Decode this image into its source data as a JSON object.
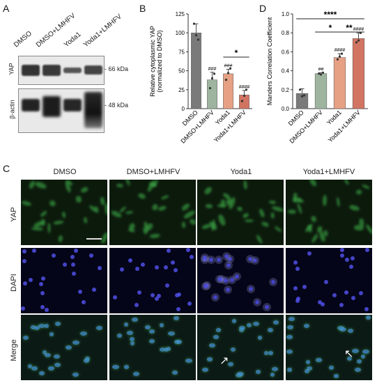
{
  "panel_labels": {
    "a": "A",
    "b": "B",
    "c": "C",
    "d": "D"
  },
  "western": {
    "lanes": [
      "DMSO",
      "DMSO+LMHFV",
      "Yoda1",
      "Yoda1+LMHFV"
    ],
    "rows": [
      {
        "protein": "YAP",
        "size": "- 66 kDa"
      },
      {
        "protein": "β-actin",
        "size": "- 48 kDa"
      }
    ]
  },
  "chart_data": [
    {
      "type": "bar",
      "panel": "B",
      "categories": [
        "DMSO",
        "DMSO+LMHFV",
        "Yoda1",
        "Yoda1+LMHFV"
      ],
      "values": [
        100,
        38,
        46,
        18
      ],
      "errors": [
        12,
        10,
        6,
        6
      ],
      "points": [
        [
          112,
          97,
          91
        ],
        [
          27,
          40,
          46
        ],
        [
          38,
          47,
          53
        ],
        [
          10,
          17,
          25
        ]
      ],
      "colors": [
        "#7a7a7a",
        "#9fb49f",
        "#e6a184",
        "#d27462"
      ],
      "annotations": [
        "",
        "###",
        "###",
        "####"
      ],
      "significance": [
        {
          "from": 2,
          "to": 3,
          "label": "*"
        }
      ],
      "ylabel": "Relative cytoplasmic YAP\n(normalized to DMSO)",
      "ylim": [
        0,
        125
      ],
      "yticks": [
        0,
        25,
        50,
        75,
        100,
        125
      ]
    },
    {
      "type": "bar",
      "panel": "D",
      "categories": [
        "DMSO",
        "DMSO+LMHFV",
        "Yoda1",
        "Yoda1+LMHFV"
      ],
      "values": [
        0.16,
        0.37,
        0.54,
        0.74
      ],
      "errors": [
        0.05,
        0.01,
        0.04,
        0.06
      ],
      "points": [
        [
          0.2,
          0.13,
          0.14
        ],
        [
          0.37,
          0.36,
          0.38
        ],
        [
          0.52,
          0.55,
          0.58
        ],
        [
          0.7,
          0.72,
          0.8
        ]
      ],
      "colors": [
        "#7a7a7a",
        "#9fb49f",
        "#e6a184",
        "#d27462"
      ],
      "annotations": [
        "",
        "##",
        "####",
        "####"
      ],
      "significance": [
        {
          "from": 0,
          "to": 3,
          "label": "****"
        },
        {
          "from": 1,
          "to": 2,
          "label": "*"
        },
        {
          "from": 2,
          "to": 3,
          "label": "**"
        }
      ],
      "ylabel": "Manders Correlation Coefficient",
      "ylim": [
        0,
        1.0
      ],
      "yticks": [
        "0.0",
        "0.2",
        "0.4",
        "0.6",
        "0.8",
        "1.0"
      ]
    }
  ],
  "micrographs": {
    "columns": [
      "DMSO",
      "DMSO+LMHFV",
      "Yoda1",
      "Yoda1+LMHFV"
    ],
    "rows": [
      "YAP",
      "DAPI",
      "Merge"
    ]
  }
}
